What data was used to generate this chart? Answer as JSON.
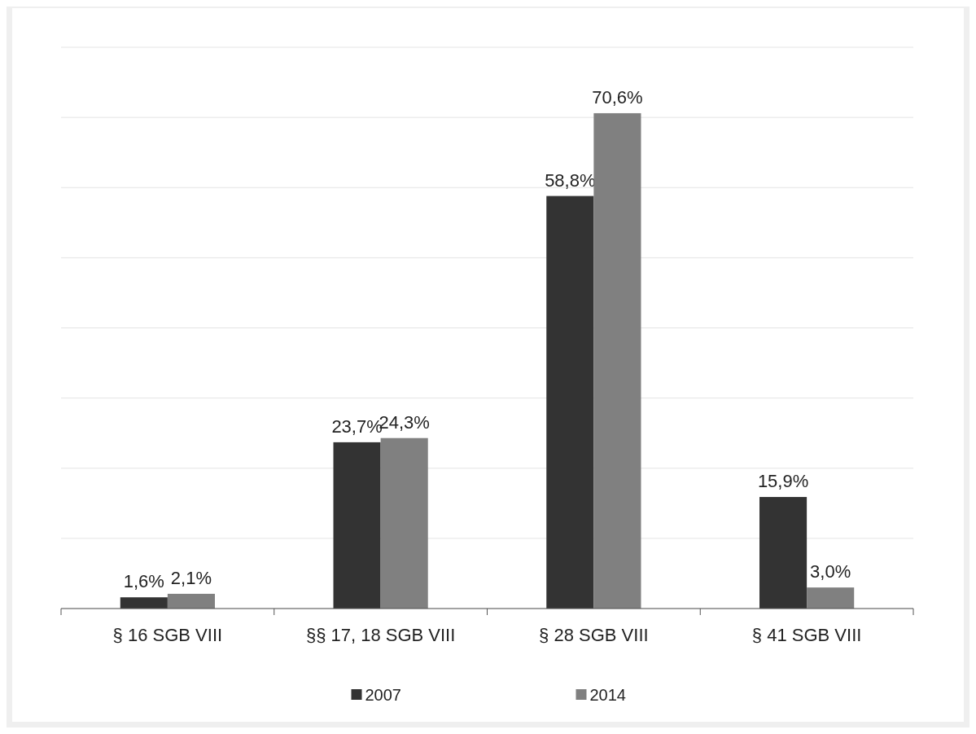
{
  "chart_data": {
    "type": "bar",
    "categories": [
      "§ 16 SGB VIII",
      "§§ 17, 18 SGB VIII",
      "§ 28 SGB VIII",
      "§ 41 SGB VIII"
    ],
    "series": [
      {
        "name": "2007",
        "color": "#333333",
        "values": [
          1.6,
          23.7,
          58.8,
          15.9
        ],
        "value_labels": [
          "1,6%",
          "23,7%",
          "58,8%",
          "15,9%"
        ]
      },
      {
        "name": "2014",
        "color": "#808080",
        "values": [
          2.1,
          24.3,
          70.6,
          3.0
        ],
        "value_labels": [
          "2,1%",
          "24,3%",
          "70,6%",
          "3,0%"
        ]
      }
    ],
    "ylim": [
      0,
      80
    ],
    "yticks": [
      {
        "value": 0,
        "label": null
      },
      {
        "value": 10,
        "label": null
      },
      {
        "value": 20,
        "label": null
      },
      {
        "value": 30,
        "label": null
      },
      {
        "value": 40,
        "label": null
      },
      {
        "value": 50,
        "label": null
      },
      {
        "value": 60,
        "label": null
      },
      {
        "value": 70,
        "label": null
      },
      {
        "value": 80,
        "label": null
      }
    ],
    "grid": "y",
    "tick_labels": "x",
    "legend": "bottom"
  }
}
